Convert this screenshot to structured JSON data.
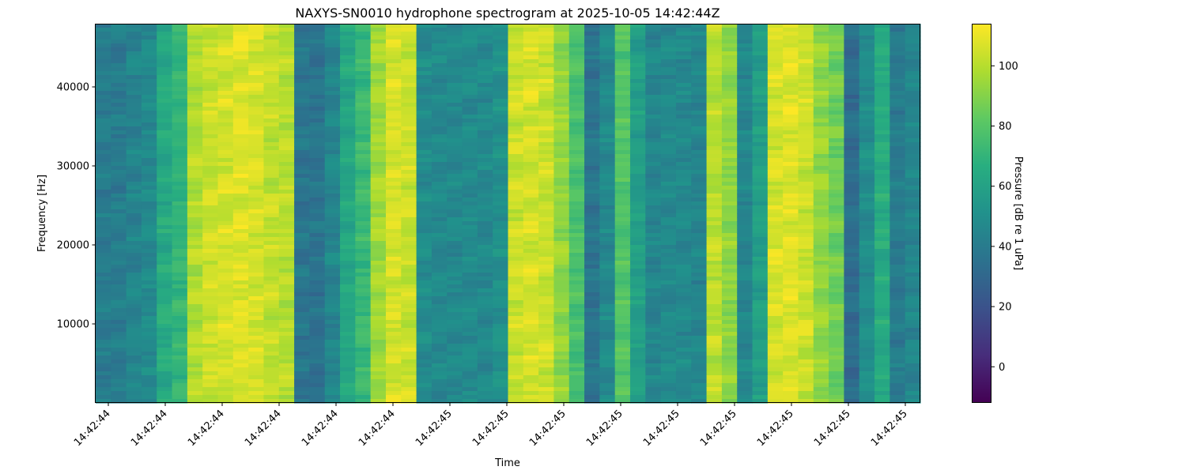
{
  "chart_data": {
    "type": "heatmap",
    "title": "NAXYS-SN0010 hydrophone spectrogram at 2025-10-05 14:42:44Z",
    "xlabel": "Time",
    "ylabel": "Frequency [Hz]",
    "colorbar_label": "Pressure [dB re 1 uPa]",
    "colormap": "viridis",
    "colormap_stops": [
      "#440154",
      "#472d7b",
      "#3b528b",
      "#2c728e",
      "#21918c",
      "#28ae80",
      "#5ec962",
      "#addc30",
      "#fde725"
    ],
    "clim": [
      -12,
      114
    ],
    "colorbar_ticks": [
      0,
      20,
      40,
      60,
      80,
      100
    ],
    "ylim": [
      0,
      48000
    ],
    "yticks": [
      10000,
      20000,
      30000,
      40000
    ],
    "x_ticklabels": [
      "14:42:44",
      "14:42:44",
      "14:42:44",
      "14:42:44",
      "14:42:44",
      "14:42:44",
      "14:42:45",
      "14:42:45",
      "14:42:45",
      "14:42:45",
      "14:42:45",
      "14:42:45",
      "14:42:45",
      "14:42:45",
      "14:42:45"
    ],
    "time_columns_db": [
      40,
      40,
      44,
      47,
      64,
      70,
      99,
      104,
      106,
      108,
      106,
      102,
      100,
      37,
      36,
      45,
      62,
      72,
      96,
      106,
      104,
      48,
      47,
      47,
      47,
      47,
      51,
      104,
      106,
      104,
      93,
      77,
      37,
      47,
      79,
      58,
      45,
      47,
      47,
      45,
      101,
      92,
      46,
      58,
      106,
      108,
      104,
      93,
      86,
      33,
      49,
      65,
      40,
      45
    ],
    "frequency_bins": 96
  }
}
